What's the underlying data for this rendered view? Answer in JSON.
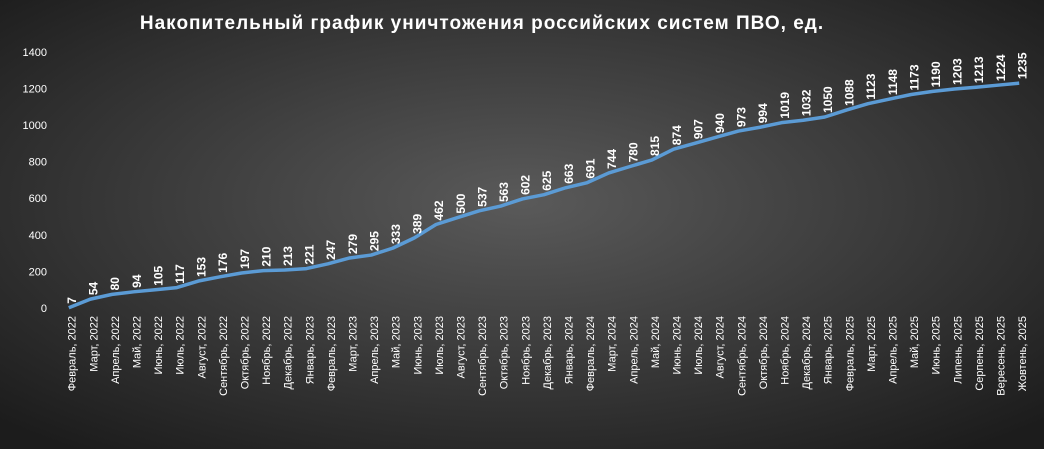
{
  "chart_data": {
    "type": "line",
    "title": "Накопительный график уничтожения российских систем ПВО, ед.",
    "categories": [
      "Февраль, 2022",
      "Март, 2022",
      "Апрель, 2022",
      "Май, 2022",
      "Июнь, 2022",
      "Июль, 2022",
      "Август, 2022",
      "Сентябрь, 2022",
      "Октябрь, 2022",
      "Ноябрь, 2022",
      "Декабрь, 2022",
      "Январь, 2023",
      "Февраль, 2023",
      "Март, 2023",
      "Апрель, 2023",
      "Май, 2023",
      "Июнь, 2023",
      "Июль, 2023",
      "Август, 2023",
      "Сентябрь, 2023",
      "Октябрь, 2023",
      "Ноябрь, 2023",
      "Декабрь, 2023",
      "Январь, 2024",
      "Февраль, 2024",
      "Март, 2024",
      "Апрель, 2024",
      "Май, 2024",
      "Июнь, 2024",
      "Июль, 2024",
      "Август, 2024",
      "Сентябрь, 2024",
      "Октябрь, 2024",
      "Ноябрь, 2024",
      "Декабрь, 2024",
      "Январь, 2025",
      "Февраль, 2025",
      "Март, 2025",
      "Апрель, 2025",
      "Май, 2025",
      "Июнь, 2025",
      "Липень, 2025",
      "Серпень, 2025",
      "Вересень, 2025",
      "Жовтень, 2025"
    ],
    "values": [
      7,
      54,
      80,
      94,
      105,
      117,
      153,
      176,
      197,
      210,
      213,
      221,
      247,
      279,
      295,
      333,
      389,
      462,
      500,
      537,
      563,
      602,
      625,
      663,
      691,
      744,
      780,
      815,
      874,
      907,
      940,
      973,
      994,
      1019,
      1032,
      1050,
      1088,
      1123,
      1148,
      1173,
      1190,
      1203,
      1213,
      1224,
      1235
    ],
    "color": "#5b9bd5",
    "ylim": [
      0,
      1400
    ],
    "yticks": [
      0,
      200,
      400,
      600,
      800,
      1000,
      1200,
      1400
    ],
    "grid": false
  }
}
